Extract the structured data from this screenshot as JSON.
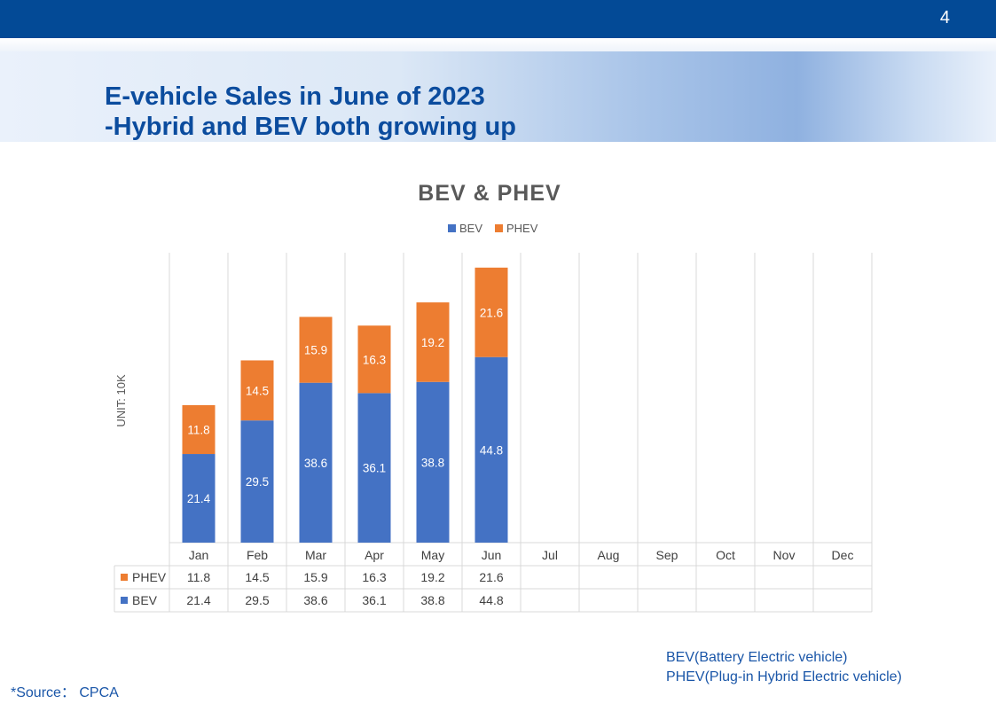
{
  "page_number": "4",
  "slide_title": {
    "line1": "E-vehicle Sales in June of 2023",
    "line2": "-Hybrid and BEV both growing up"
  },
  "footnotes": {
    "source": "*Source： CPCA",
    "bev_definition": "BEV(Battery Electric vehicle)",
    "phev_definition": "PHEV(Plug-in Hybrid Electric vehicle)"
  },
  "colors": {
    "header_bar": "#034a96",
    "title": "#0b4c9e",
    "bev": "#4472c4",
    "phev": "#ed7d31",
    "footnote": "#1a56a8"
  },
  "chart_data": {
    "type": "bar",
    "stacked": true,
    "title": "BEV & PHEV",
    "ylabel": "UNIT: 10K",
    "xlabel": "",
    "legend_position": "top-center",
    "grid": "vertical",
    "ylim": [
      0,
      70
    ],
    "categories": [
      "Jan",
      "Feb",
      "Mar",
      "Apr",
      "May",
      "Jun",
      "Jul",
      "Aug",
      "Sep",
      "Oct",
      "Nov",
      "Dec"
    ],
    "series": [
      {
        "name": "BEV",
        "color": "#4472c4",
        "values": [
          21.4,
          29.5,
          38.6,
          36.1,
          38.8,
          44.8,
          null,
          null,
          null,
          null,
          null,
          null
        ]
      },
      {
        "name": "PHEV",
        "color": "#ed7d31",
        "values": [
          11.8,
          14.5,
          15.9,
          16.3,
          19.2,
          21.6,
          null,
          null,
          null,
          null,
          null,
          null
        ]
      }
    ],
    "data_table": {
      "row_order": [
        "PHEV",
        "BEV"
      ]
    }
  }
}
